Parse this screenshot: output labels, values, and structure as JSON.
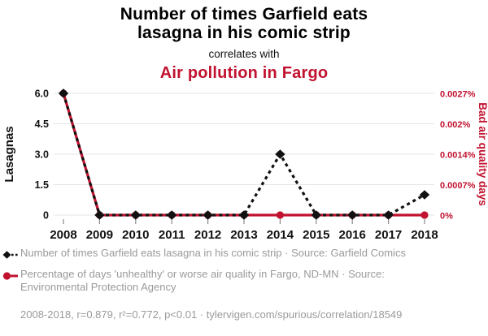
{
  "header": {
    "title_line1": "Number of times Garfield eats",
    "title_line2": "lasagna in his comic strip",
    "connector": "correlates with",
    "subtitle": "Air pollution in Fargo"
  },
  "chart_data": {
    "type": "line",
    "x": [
      2008,
      2009,
      2010,
      2011,
      2012,
      2013,
      2014,
      2015,
      2016,
      2017,
      2018
    ],
    "series": [
      {
        "name": "Number of times Garfield eats lasagna in his comic strip",
        "axis": "left",
        "style": "dashed",
        "marker": "diamond",
        "color": "#111111",
        "values": [
          6,
          0,
          0,
          0,
          0,
          0,
          3,
          0,
          0,
          0,
          1
        ]
      },
      {
        "name": "Percentage of days 'unhealthy' or worse air quality in Fargo, ND-MN",
        "axis": "right",
        "style": "solid",
        "marker": "circle",
        "color": "#c1122f",
        "values_percent": [
          0.0027,
          0,
          0,
          0,
          0,
          0,
          0,
          0,
          0,
          0,
          0
        ]
      }
    ],
    "left_axis": {
      "label": "Lasagnas",
      "ticks": [
        "0",
        "1.5",
        "3.0",
        "4.5",
        "6.0"
      ],
      "tick_values": [
        0,
        1.5,
        3,
        4.5,
        6
      ],
      "range": [
        0,
        6
      ]
    },
    "right_axis": {
      "label": "Bad air quality days",
      "ticks": [
        "0%",
        "0.0007%",
        "0.0014%",
        "0.002%",
        "0.0027%"
      ],
      "tick_values": [
        0,
        0.000675,
        0.00135,
        0.002025,
        0.0027
      ],
      "range": [
        0,
        0.0027
      ]
    },
    "grid": true,
    "legend_position": "bottom"
  },
  "legend": {
    "items": [
      {
        "marker": "black-diamond-dashed",
        "label": "Number of times Garfield eats lasagna in his comic strip · Source: Garfield Comics"
      },
      {
        "marker": "red-circle-solid",
        "label": "Percentage of days 'unhealthy' or worse air quality in Fargo, ND-MN · Source: Environmental Protection Agency"
      }
    ]
  },
  "footer": {
    "stats": "2008-2018, r=0.879, r²=0.772, p<0.01 · tylervigen.com/spurious/correlation/18549"
  },
  "colors": {
    "accent_red": "#c1122f",
    "series_black": "#111111",
    "text_gray": "#9a9a9a",
    "gridline": "#e6e6e6",
    "tick_mark": "#8a8a8a"
  }
}
